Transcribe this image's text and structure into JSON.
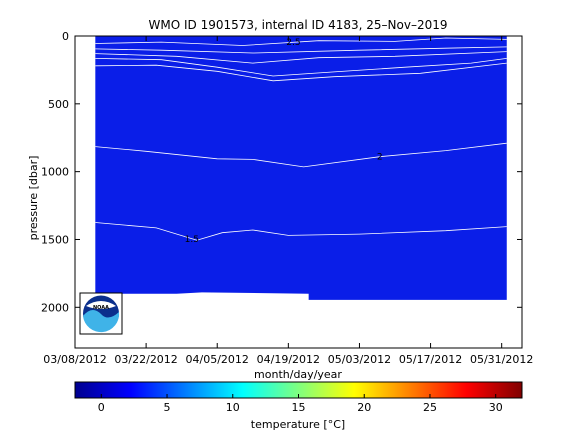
{
  "chart_data": {
    "type": "heatmap",
    "title": "WMO ID 1901573, internal ID 4183, 25–Nov–2019",
    "xlabel": "month/day/year",
    "ylabel": "pressure [dbar]",
    "x_ticks": [
      "03/08/2012",
      "03/22/2012",
      "04/05/2012",
      "04/19/2012",
      "05/03/2012",
      "05/17/2012",
      "05/31/2012"
    ],
    "xlim": [
      "2012-03-08",
      "2012-06-04"
    ],
    "y_ticks": [
      0,
      500,
      1000,
      1500,
      2000
    ],
    "ylim": [
      0,
      2300
    ],
    "y_reversed": true,
    "data_extent": {
      "x_start": "2012-03-12",
      "x_end": "2012-06-01",
      "bottom_pressure": [
        {
          "date": "2012-03-12",
          "pressure": 1900
        },
        {
          "date": "2012-03-28",
          "pressure": 1900
        },
        {
          "date": "2012-04-02",
          "pressure": 1890
        },
        {
          "date": "2012-04-23",
          "pressure": 1900
        },
        {
          "date": "2012-04-23",
          "pressure": 1945
        },
        {
          "date": "2012-06-01",
          "pressure": 1945
        }
      ]
    },
    "fill_color": "#0a1ee8",
    "contours": [
      {
        "label": "2",
        "label_date": "2012-05-07",
        "label_pressure": 890,
        "points": [
          [
            "2012-03-12",
            815
          ],
          [
            "2012-03-22",
            850
          ],
          [
            "2012-04-05",
            905
          ],
          [
            "2012-04-12",
            910
          ],
          [
            "2012-04-22",
            965
          ],
          [
            "2012-05-07",
            890
          ],
          [
            "2012-05-20",
            845
          ],
          [
            "2012-06-01",
            790
          ]
        ]
      },
      {
        "label": "1.5",
        "label_date": "2012-03-31",
        "label_pressure": 1495,
        "points": [
          [
            "2012-03-12",
            1375
          ],
          [
            "2012-03-24",
            1415
          ],
          [
            "2012-04-01",
            1505
          ],
          [
            "2012-04-06",
            1450
          ],
          [
            "2012-04-12",
            1430
          ],
          [
            "2012-04-19",
            1470
          ],
          [
            "2012-05-03",
            1460
          ],
          [
            "2012-05-20",
            1435
          ],
          [
            "2012-06-01",
            1405
          ]
        ]
      },
      {
        "label": "2.5",
        "label_date": "2012-04-20",
        "label_pressure": 45,
        "points": [
          [
            "2012-03-12",
            55
          ],
          [
            "2012-03-25",
            45
          ],
          [
            "2012-04-10",
            70
          ],
          [
            "2012-04-25",
            35
          ],
          [
            "2012-05-10",
            40
          ],
          [
            "2012-05-20",
            15
          ],
          [
            "2012-06-01",
            25
          ]
        ]
      },
      {
        "label": "",
        "points": [
          [
            "2012-03-12",
            130
          ],
          [
            "2012-03-28",
            150
          ],
          [
            "2012-04-12",
            200
          ],
          [
            "2012-04-25",
            160
          ],
          [
            "2012-05-10",
            150
          ],
          [
            "2012-06-01",
            115
          ]
        ]
      },
      {
        "label": "",
        "points": [
          [
            "2012-03-12",
            165
          ],
          [
            "2012-03-25",
            175
          ],
          [
            "2012-04-05",
            230
          ],
          [
            "2012-04-16",
            295
          ],
          [
            "2012-04-28",
            265
          ],
          [
            "2012-05-12",
            230
          ],
          [
            "2012-05-25",
            200
          ],
          [
            "2012-06-01",
            165
          ]
        ]
      },
      {
        "label": "",
        "points": [
          [
            "2012-03-12",
            220
          ],
          [
            "2012-03-24",
            215
          ],
          [
            "2012-04-05",
            260
          ],
          [
            "2012-04-16",
            330
          ],
          [
            "2012-04-28",
            300
          ],
          [
            "2012-05-15",
            275
          ],
          [
            "2012-06-01",
            200
          ]
        ]
      },
      {
        "label": "",
        "points": [
          [
            "2012-03-12",
            95
          ],
          [
            "2012-03-25",
            105
          ],
          [
            "2012-04-12",
            125
          ],
          [
            "2012-05-03",
            105
          ],
          [
            "2012-05-20",
            90
          ],
          [
            "2012-06-01",
            80
          ]
        ]
      }
    ],
    "colorbar": {
      "label": "temperature [°C]",
      "ticks": [
        0,
        5,
        10,
        15,
        20,
        25,
        30
      ],
      "range": [
        -2,
        32
      ],
      "colormap": "jet"
    },
    "grid": false,
    "logo": "noaa-logo"
  }
}
